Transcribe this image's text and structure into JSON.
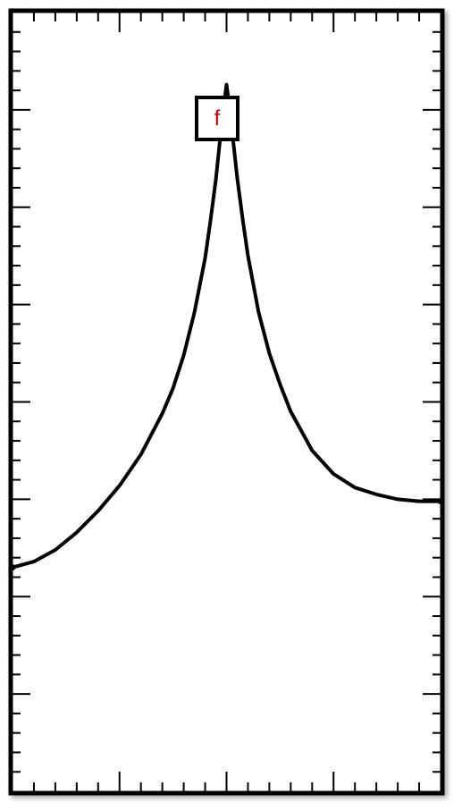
{
  "chart_data": {
    "type": "line",
    "panel_label": "f",
    "panel_label_color": "#c00000",
    "line_color": "#000000",
    "frame_color": "#000000",
    "xlim": [
      -2,
      2
    ],
    "ylim": [
      0,
      8
    ],
    "x_major_ticks": [
      -1,
      0,
      1
    ],
    "x_minor_step": 0.2,
    "y_major_ticks": [
      1,
      2,
      3,
      4,
      5,
      6,
      7
    ],
    "y_minor_step": 0.2,
    "grid": false,
    "series": [
      {
        "x": [
          -2.0,
          -1.8,
          -1.6,
          -1.4,
          -1.2,
          -1.0,
          -0.8,
          -0.6,
          -0.5,
          -0.4,
          -0.3,
          -0.2,
          -0.15,
          -0.1,
          -0.06,
          -0.03,
          0.0,
          0.03,
          0.06,
          0.1,
          0.15,
          0.2,
          0.3,
          0.4,
          0.5,
          0.6,
          0.8,
          1.0,
          1.2,
          1.4,
          1.6,
          1.8,
          2.0
        ],
        "y": [
          2.3,
          2.36,
          2.48,
          2.66,
          2.88,
          3.14,
          3.46,
          3.88,
          4.14,
          4.48,
          4.92,
          5.48,
          5.86,
          6.28,
          6.7,
          7.0,
          7.26,
          7.0,
          6.7,
          6.3,
          5.88,
          5.5,
          4.92,
          4.5,
          4.18,
          3.9,
          3.5,
          3.26,
          3.12,
          3.05,
          3.0,
          2.98,
          2.98
        ]
      }
    ]
  }
}
